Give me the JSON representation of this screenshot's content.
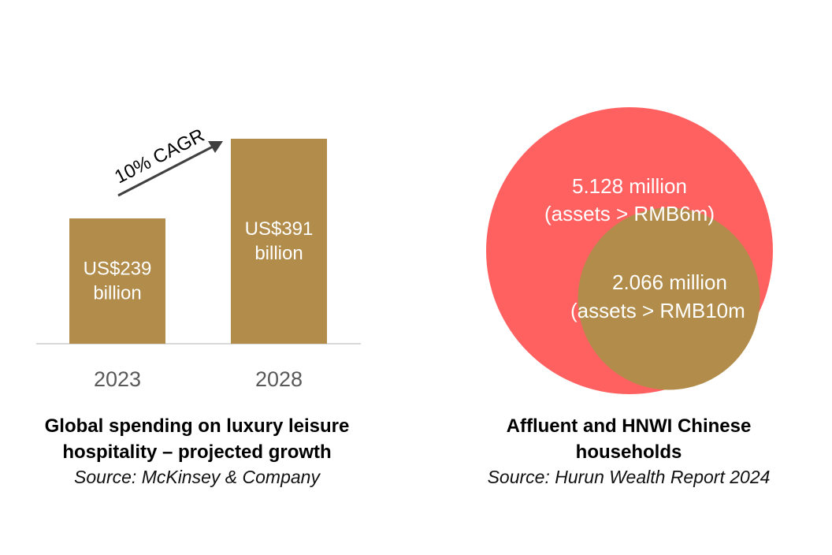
{
  "colors": {
    "bar": "#b28c4a",
    "big_circle": "#ff6161",
    "small_circle": "#b28c4a",
    "axis": "#d9d9d9",
    "arrow": "#404040"
  },
  "chart_data": [
    {
      "type": "bar",
      "categories": [
        "2023",
        "2028"
      ],
      "values": [
        239,
        391
      ],
      "data_labels": [
        {
          "line1": "US$239",
          "line2": "billion"
        },
        {
          "line1": "US$391",
          "line2": "billion"
        }
      ],
      "ylim": [
        0,
        400
      ],
      "annotation": "10% CAGR",
      "title": "Global spending on luxury leisure hospitality – projected growth",
      "source": "Source: McKinsey & Company",
      "grid": false,
      "legend": "none"
    },
    {
      "type": "bubble",
      "values": [
        5.128,
        2.066
      ],
      "labels": [
        {
          "line1": "5.128 million",
          "line2": "(assets > RMB6m)"
        },
        {
          "line1": "2.066 million",
          "line2": "(assets > RMB10m"
        }
      ],
      "title": "Affluent and HNWI Chinese households",
      "source": "Source: Hurun Wealth Report 2024"
    }
  ],
  "captions": {
    "left": {
      "title_line1": "Global spending on luxury leisure",
      "title_line2": "hospitality – projected growth",
      "source": "Source: McKinsey & Company"
    },
    "right": {
      "title_line1": "Affluent and HNWI Chinese",
      "title_line2": "households",
      "source": "Source: Hurun Wealth Report 2024"
    }
  }
}
